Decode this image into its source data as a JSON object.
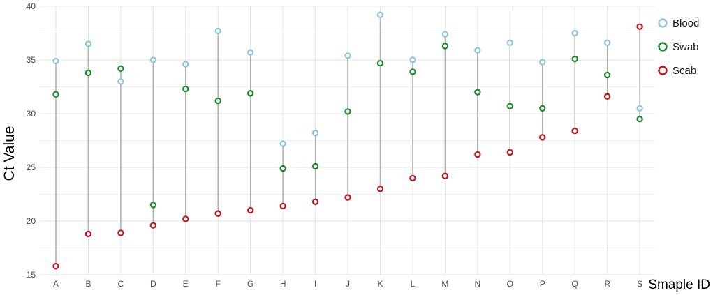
{
  "chart_data": {
    "type": "scatter",
    "title": "",
    "xlabel": "Smaple ID",
    "ylabel": "Ct Value",
    "ylim": [
      15,
      40
    ],
    "yticks": [
      15,
      20,
      25,
      30,
      35,
      40
    ],
    "grid": true,
    "legend_position": "top-right",
    "categories": [
      "A",
      "B",
      "C",
      "D",
      "E",
      "F",
      "G",
      "H",
      "I",
      "J",
      "K",
      "L",
      "M",
      "N",
      "O",
      "P",
      "Q",
      "R",
      "S"
    ],
    "series": [
      {
        "name": "Blood",
        "color": "#8ec6e0",
        "values": [
          34.9,
          36.5,
          33.0,
          35.0,
          34.6,
          37.7,
          35.7,
          27.2,
          28.2,
          35.4,
          39.2,
          35.0,
          37.4,
          35.9,
          36.6,
          34.8,
          37.5,
          36.6,
          30.5
        ]
      },
      {
        "name": "Swab",
        "color": "#1f8a2e",
        "values": [
          31.8,
          33.8,
          34.2,
          21.5,
          32.3,
          31.2,
          31.9,
          24.9,
          25.1,
          30.2,
          34.7,
          33.9,
          36.3,
          32.0,
          30.7,
          30.5,
          35.1,
          33.6,
          29.5
        ]
      },
      {
        "name": "Scab",
        "color": "#c0181c",
        "values": [
          15.8,
          18.8,
          18.9,
          19.6,
          20.2,
          20.7,
          21.0,
          21.4,
          21.8,
          22.2,
          23.0,
          24.0,
          24.2,
          26.2,
          26.4,
          27.8,
          28.4,
          31.6,
          38.1
        ]
      }
    ],
    "range_line_color": "#b3b3b3",
    "grid_color": "#e3e3e3"
  }
}
